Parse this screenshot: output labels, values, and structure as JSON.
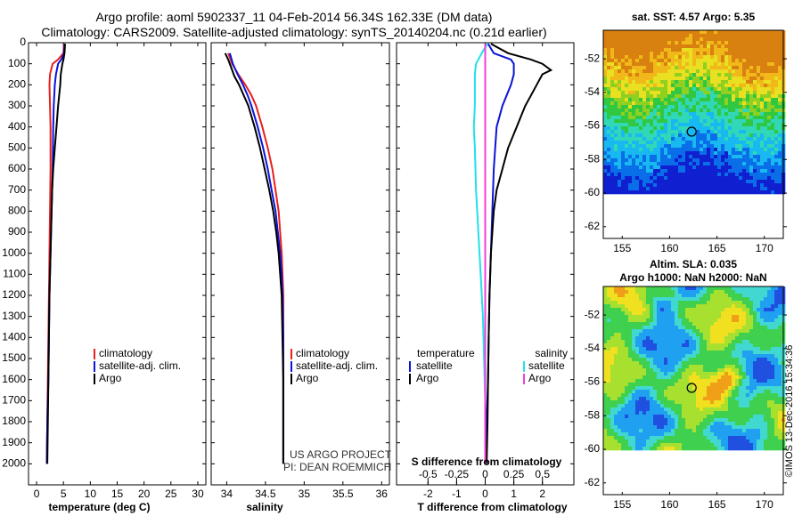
{
  "header": {
    "title_line1": "Argo profile: aoml 5902337_11 04-Feb-2014 56.34S 162.33E (DM data)",
    "title_line2": "Climatology: CARS2009. Satellite-adjusted climatology: synTS_20140204.nc (0.21d earlier)"
  },
  "colors": {
    "climatology": "#e8201c",
    "satellite_adj": "#0a14d8",
    "argo": "#000000",
    "satellite_cyan": "#22e0e8",
    "salinity_magenta": "#f040d8"
  },
  "chart_data": [
    {
      "type": "line",
      "id": "temperature",
      "xlabel": "temperature (deg C)",
      "ylabel": "",
      "xlim": [
        -1.5,
        31.5
      ],
      "ylim": [
        2100,
        0
      ],
      "xticks": [
        0,
        5,
        10,
        15,
        20,
        25,
        30
      ],
      "yticks": [
        0,
        100,
        200,
        300,
        400,
        500,
        600,
        700,
        800,
        900,
        1000,
        1100,
        1200,
        1300,
        1400,
        1500,
        1600,
        1700,
        1800,
        1900,
        2000
      ],
      "legend": [
        "climatology",
        "satellite-adj. clim.",
        "Argo"
      ],
      "series": [
        {
          "name": "climatology",
          "color_key": "climatology",
          "depth": [
            5,
            50,
            80,
            100,
            150,
            200,
            300,
            400,
            600,
            800,
            1000,
            1200,
            1400,
            1600,
            1800,
            2000
          ],
          "values": [
            5.1,
            5.0,
            4.0,
            3.0,
            2.5,
            2.4,
            2.5,
            2.6,
            2.6,
            2.5,
            2.4,
            2.3,
            2.2,
            2.1,
            2.0,
            1.9
          ]
        },
        {
          "name": "satellite-adj. clim.",
          "color_key": "satellite_adj",
          "depth": [
            5,
            50,
            80,
            100,
            150,
            200,
            300,
            400,
            600,
            800,
            1000,
            1200,
            1400,
            1600,
            1800,
            2000
          ],
          "values": [
            5.2,
            5.1,
            4.6,
            4.0,
            3.6,
            3.4,
            3.2,
            3.1,
            3.0,
            2.8,
            2.6,
            2.4,
            2.3,
            2.2,
            2.0,
            1.9
          ]
        },
        {
          "name": "Argo",
          "color_key": "argo",
          "depth": [
            5,
            50,
            80,
            100,
            150,
            200,
            250,
            300,
            400,
            500,
            600,
            700,
            800,
            1000,
            1200,
            1400,
            1600,
            1800,
            2000
          ],
          "values": [
            5.3,
            5.2,
            5.0,
            4.8,
            4.5,
            4.4,
            4.2,
            4.0,
            3.7,
            3.4,
            3.1,
            2.9,
            2.8,
            2.6,
            2.4,
            2.3,
            2.2,
            2.1,
            2.0
          ]
        }
      ]
    },
    {
      "type": "line",
      "id": "salinity",
      "xlabel": "salinity",
      "ylabel": "",
      "xlim": [
        33.8,
        36.1
      ],
      "ylim": [
        2100,
        0
      ],
      "xticks": [
        34,
        34.5,
        35,
        35.5,
        36
      ],
      "xticklabels": [
        "34",
        "34.5",
        "35",
        "35.5",
        "36"
      ],
      "legend": [
        "climatology",
        "satellite-adj. clim.",
        "Argo"
      ],
      "series": [
        {
          "name": "climatology",
          "color_key": "climatology",
          "depth": [
            50,
            100,
            150,
            200,
            250,
            300,
            400,
            500,
            600,
            700,
            800,
            900,
            1000,
            1100,
            1200,
            1400,
            1600,
            1800,
            2000
          ],
          "values": [
            34.02,
            34.07,
            34.15,
            34.24,
            34.32,
            34.38,
            34.46,
            34.53,
            34.59,
            34.63,
            34.67,
            34.69,
            34.71,
            34.72,
            34.73,
            34.73,
            34.73,
            34.73,
            34.73
          ]
        },
        {
          "name": "satellite-adj. clim.",
          "color_key": "satellite_adj",
          "depth": [
            50,
            100,
            150,
            200,
            250,
            300,
            400,
            500,
            600,
            700,
            800,
            900,
            1000,
            1100,
            1200,
            1400,
            1600,
            1800,
            2000
          ],
          "values": [
            34.04,
            34.08,
            34.14,
            34.21,
            34.27,
            34.32,
            34.4,
            34.47,
            34.53,
            34.58,
            34.63,
            34.66,
            34.69,
            34.71,
            34.72,
            34.73,
            34.73,
            34.73,
            34.73
          ]
        },
        {
          "name": "Argo",
          "color_key": "argo",
          "depth": [
            50,
            80,
            120,
            160,
            200,
            300,
            400,
            500,
            600,
            700,
            800,
            900,
            1000,
            1100,
            1200,
            1400,
            1600,
            1800,
            2000
          ],
          "values": [
            33.98,
            34.02,
            34.06,
            34.1,
            34.16,
            34.28,
            34.36,
            34.43,
            34.49,
            34.55,
            34.6,
            34.64,
            34.67,
            34.69,
            34.71,
            34.72,
            34.73,
            34.73,
            34.73
          ]
        }
      ],
      "annotation": [
        "US ARGO PROJECT",
        "PI: DEAN ROEMMICH"
      ]
    },
    {
      "type": "line",
      "id": "difference",
      "xlabel": "T difference from climatology",
      "secondary_xlabel": "S difference from climatology",
      "xlim": [
        -3.1,
        3.1
      ],
      "ylim": [
        2100,
        0
      ],
      "xticks": [
        -2,
        -1,
        0,
        1,
        2
      ],
      "xticklabels": [
        "-2",
        "-1",
        "0",
        "1",
        "2"
      ],
      "secondary_xticks": [
        -0.5,
        -0.25,
        0,
        0.25,
        0.5
      ],
      "secondary_xticklabels": [
        "-0.5",
        "-0.25",
        "0",
        "0.25",
        "0.5"
      ],
      "legend_left_title": "temperature",
      "legend_right_title": "salinity",
      "legend_left": [
        "satellite",
        "Argo"
      ],
      "legend_right": [
        "satellite",
        "Argo"
      ],
      "series": [
        {
          "name": "temperature satellite",
          "color_key": "satellite_adj",
          "depth": [
            5,
            50,
            80,
            100,
            150,
            200,
            300,
            400,
            600,
            800,
            1000,
            1200,
            1400,
            1600,
            1800,
            2000
          ],
          "values": [
            0.1,
            0.3,
            0.9,
            1.0,
            1.0,
            0.9,
            0.6,
            0.4,
            0.3,
            0.25,
            0.2,
            0.15,
            0.12,
            0.1,
            0.05,
            0.0
          ]
        },
        {
          "name": "temperature Argo",
          "color_key": "argo",
          "depth": [
            5,
            50,
            80,
            100,
            130,
            150,
            200,
            250,
            300,
            400,
            500,
            600,
            700,
            800,
            1000,
            1200,
            1400,
            1600,
            1800,
            2000
          ],
          "values": [
            0.2,
            0.8,
            1.6,
            2.0,
            2.3,
            2.0,
            1.8,
            1.6,
            1.4,
            1.1,
            0.8,
            0.6,
            0.4,
            0.3,
            0.2,
            0.15,
            0.12,
            0.1,
            0.08,
            0.05
          ]
        },
        {
          "name": "salinity satellite",
          "color_key": "satellite_cyan",
          "depth": [
            5,
            50,
            100,
            150,
            200,
            300,
            400,
            500,
            700,
            900,
            1100,
            1300,
            1500,
            1700,
            1900,
            2000
          ],
          "values": [
            0.02,
            -0.03,
            -0.08,
            -0.09,
            -0.09,
            -0.09,
            -0.1,
            -0.09,
            -0.08,
            -0.06,
            -0.04,
            -0.02,
            -0.01,
            0,
            0,
            0
          ]
        },
        {
          "name": "salinity Argo",
          "color_key": "salinity_magenta",
          "depth": [
            5,
            300,
            800,
            1500,
            2000
          ],
          "values": [
            0,
            0,
            0,
            0,
            0
          ]
        }
      ]
    }
  ],
  "maps": [
    {
      "title": "sat. SST: 4.57 Argo: 5.35",
      "title2": "",
      "xticks": [
        155,
        160,
        165,
        170
      ],
      "yticks": [
        -52,
        -54,
        -56,
        -58,
        -60,
        -62
      ],
      "lon_range": [
        153,
        172
      ],
      "lat_range": [
        -62.7,
        -50.3
      ],
      "profile_marker": [
        162.33,
        -56.34
      ],
      "colormap": "sst"
    },
    {
      "title": "Altim. SLA: 0.035",
      "title2": "Argo h1000: NaN h2000: NaN",
      "xticks": [
        155,
        160,
        165,
        170
      ],
      "yticks": [
        -52,
        -54,
        -56,
        -58,
        -60,
        -62
      ],
      "lon_range": [
        153,
        172
      ],
      "lat_range": [
        -62.7,
        -50.3
      ],
      "profile_marker": [
        162.33,
        -56.34
      ],
      "colormap": "sla"
    }
  ],
  "footer": {
    "stamp": "©IMOS 13-Dec-2016 15:34:36"
  }
}
